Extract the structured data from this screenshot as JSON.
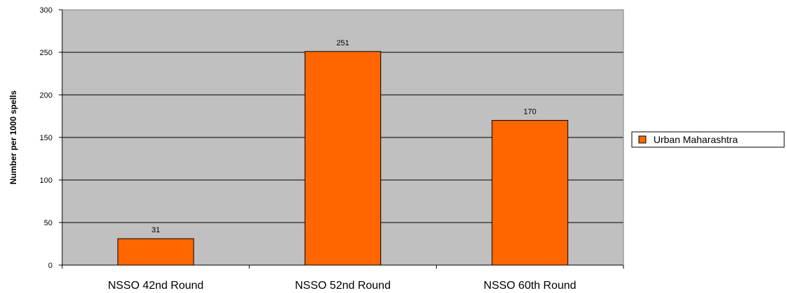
{
  "chart_data": {
    "type": "bar",
    "categories": [
      "NSSO 42nd Round",
      "NSSO 52nd Round",
      "NSSO 60th Round"
    ],
    "series": [
      {
        "name": "Urban Maharashtra",
        "values": [
          31,
          251,
          170
        ],
        "color": "#ff6600"
      }
    ],
    "data_labels": [
      "31",
      "251",
      "170"
    ],
    "title": "",
    "xlabel": "",
    "ylabel": "Number per 1000 spells",
    "ylim": [
      0,
      300
    ],
    "yticks": [
      0,
      50,
      100,
      150,
      200,
      250,
      300
    ],
    "grid": true,
    "plot_background": "#c0c0c0",
    "legend_position": "right"
  }
}
